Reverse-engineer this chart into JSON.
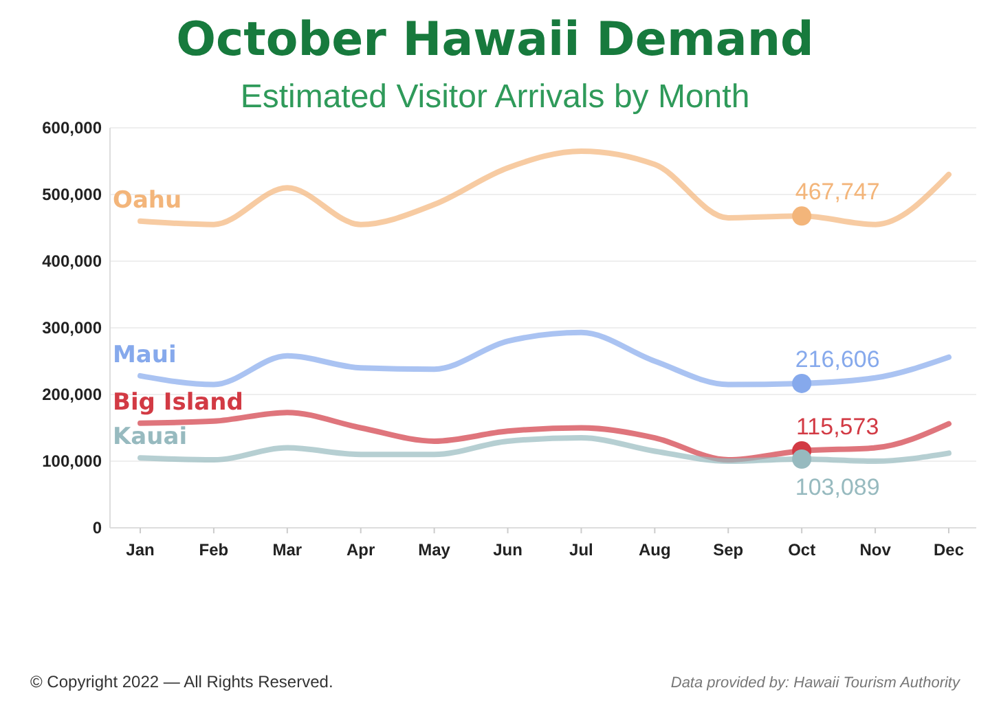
{
  "chart_data": {
    "type": "line",
    "title": "October Hawaii Demand",
    "subtitle": "Estimated Visitor Arrivals by Month",
    "categories": [
      "Jan",
      "Feb",
      "Mar",
      "Apr",
      "May",
      "Jun",
      "Jul",
      "Aug",
      "Sep",
      "Oct",
      "Nov",
      "Dec"
    ],
    "series": [
      {
        "name": "Oahu",
        "color": "#f3b57a",
        "values": [
          460000,
          455000,
          510000,
          455000,
          485000,
          540000,
          565000,
          545000,
          465000,
          467747,
          455000,
          530000
        ],
        "value_labels": [
          null,
          null,
          null,
          null,
          null,
          null,
          null,
          null,
          null,
          "467,747",
          null,
          null
        ]
      },
      {
        "name": "Maui",
        "color": "#86a9ec",
        "values": [
          228000,
          215000,
          258000,
          240000,
          238000,
          280000,
          293000,
          250000,
          215000,
          216606,
          225000,
          256000
        ],
        "value_labels": [
          null,
          null,
          null,
          null,
          null,
          null,
          null,
          null,
          null,
          "216,606",
          null,
          null
        ]
      },
      {
        "name": "Big Island",
        "color": "#d23a44",
        "values": [
          157000,
          160000,
          173000,
          150000,
          130000,
          145000,
          150000,
          135000,
          102000,
          115573,
          120000,
          156000
        ],
        "value_labels": [
          null,
          null,
          null,
          null,
          null,
          null,
          null,
          null,
          null,
          "115,573",
          null,
          null
        ]
      },
      {
        "name": "Kauai",
        "color": "#97babf",
        "values": [
          105000,
          102000,
          120000,
          110000,
          110000,
          130000,
          135000,
          115000,
          100000,
          103089,
          100000,
          112000
        ],
        "value_labels": [
          null,
          null,
          null,
          null,
          null,
          null,
          null,
          null,
          null,
          "103,089",
          null,
          null
        ]
      }
    ],
    "ylim": [
      0,
      600000
    ],
    "yticks": [
      {
        "value": 0,
        "label": "0"
      },
      {
        "value": 100000,
        "label": "100,000"
      },
      {
        "value": 200000,
        "label": "200,000"
      },
      {
        "value": 300000,
        "label": "300,000"
      },
      {
        "value": 400000,
        "label": "400,000"
      },
      {
        "value": 500000,
        "label": "500,000"
      },
      {
        "value": 600000,
        "label": "600,000"
      }
    ],
    "grid": "y",
    "marker": "none",
    "line_style": "solid",
    "annotations": [
      "© Copyright 2022 — All Rights Reserved.",
      "Data provided by: Hawaii Tourism Authority"
    ]
  }
}
